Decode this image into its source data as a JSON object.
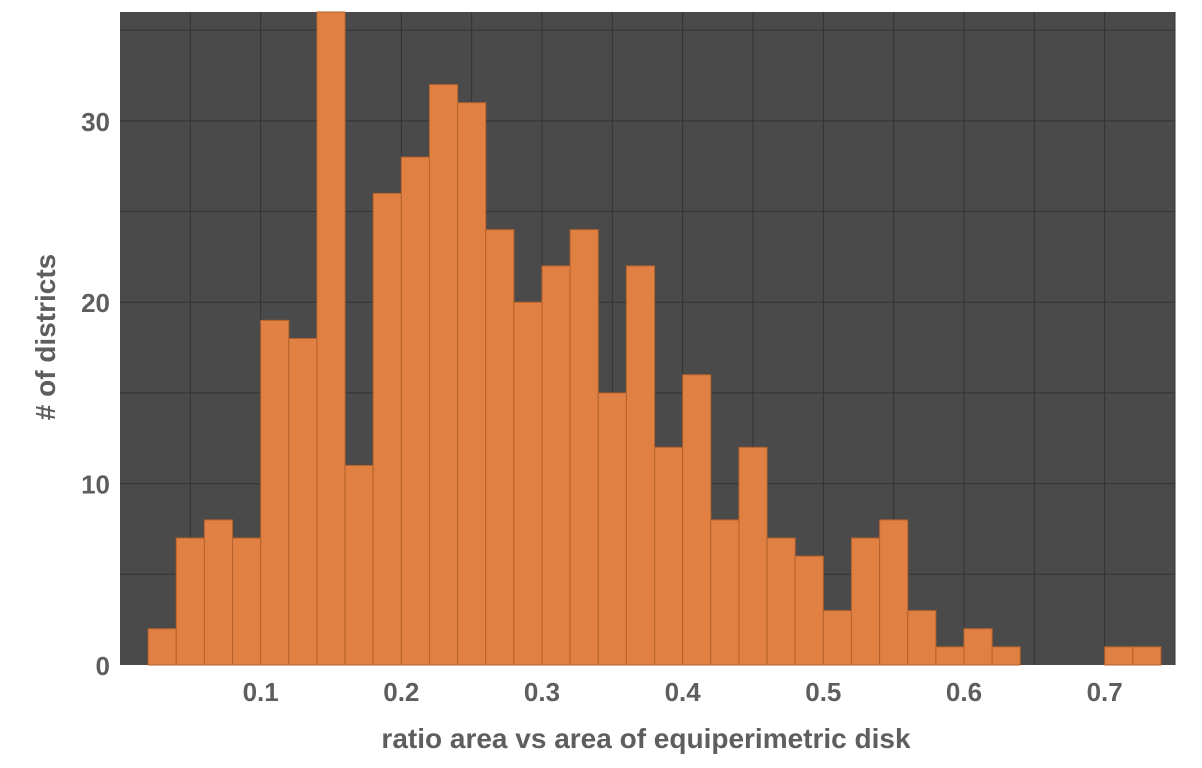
{
  "chart_data": {
    "type": "bar",
    "title": "",
    "xlabel": "ratio area vs area of equiperimetric disk",
    "ylabel": "# of districts",
    "xlim": [
      0.0,
      0.75
    ],
    "ylim": [
      0,
      36
    ],
    "bin_width": 0.02,
    "x_ticks": [
      {
        "value": 0.1,
        "label": "0.1"
      },
      {
        "value": 0.2,
        "label": "0.2"
      },
      {
        "value": 0.3,
        "label": "0.3"
      },
      {
        "value": 0.4,
        "label": "0.4"
      },
      {
        "value": 0.5,
        "label": "0.5"
      },
      {
        "value": 0.6,
        "label": "0.6"
      },
      {
        "value": 0.7,
        "label": "0.7"
      }
    ],
    "y_ticks": [
      {
        "value": 0,
        "label": "0"
      },
      {
        "value": 10,
        "label": "10"
      },
      {
        "value": 20,
        "label": "20"
      },
      {
        "value": 30,
        "label": "30"
      }
    ],
    "grid": true,
    "bins": [
      {
        "start": 0.02,
        "value": 2
      },
      {
        "start": 0.04,
        "value": 7
      },
      {
        "start": 0.06,
        "value": 8
      },
      {
        "start": 0.08,
        "value": 7
      },
      {
        "start": 0.1,
        "value": 19
      },
      {
        "start": 0.12,
        "value": 18
      },
      {
        "start": 0.14,
        "value": 36
      },
      {
        "start": 0.16,
        "value": 11
      },
      {
        "start": 0.18,
        "value": 26
      },
      {
        "start": 0.2,
        "value": 28
      },
      {
        "start": 0.22,
        "value": 32
      },
      {
        "start": 0.24,
        "value": 31
      },
      {
        "start": 0.26,
        "value": 24
      },
      {
        "start": 0.28,
        "value": 20
      },
      {
        "start": 0.3,
        "value": 22
      },
      {
        "start": 0.32,
        "value": 24
      },
      {
        "start": 0.34,
        "value": 15
      },
      {
        "start": 0.36,
        "value": 22
      },
      {
        "start": 0.38,
        "value": 12
      },
      {
        "start": 0.4,
        "value": 16
      },
      {
        "start": 0.42,
        "value": 8
      },
      {
        "start": 0.44,
        "value": 12
      },
      {
        "start": 0.46,
        "value": 7
      },
      {
        "start": 0.48,
        "value": 6
      },
      {
        "start": 0.5,
        "value": 3
      },
      {
        "start": 0.52,
        "value": 7
      },
      {
        "start": 0.54,
        "value": 8
      },
      {
        "start": 0.56,
        "value": 3
      },
      {
        "start": 0.58,
        "value": 1
      },
      {
        "start": 0.6,
        "value": 2
      },
      {
        "start": 0.62,
        "value": 1
      },
      {
        "start": 0.64,
        "value": 0
      },
      {
        "start": 0.66,
        "value": 0
      },
      {
        "start": 0.68,
        "value": 0
      },
      {
        "start": 0.7,
        "value": 1
      },
      {
        "start": 0.72,
        "value": 1
      }
    ],
    "colors": {
      "plot_background": "#4a4a4a",
      "bar_fill": "#e08042",
      "bar_stroke": "#b5622c",
      "grid": "#333333",
      "text": "#5e5e5e"
    }
  }
}
